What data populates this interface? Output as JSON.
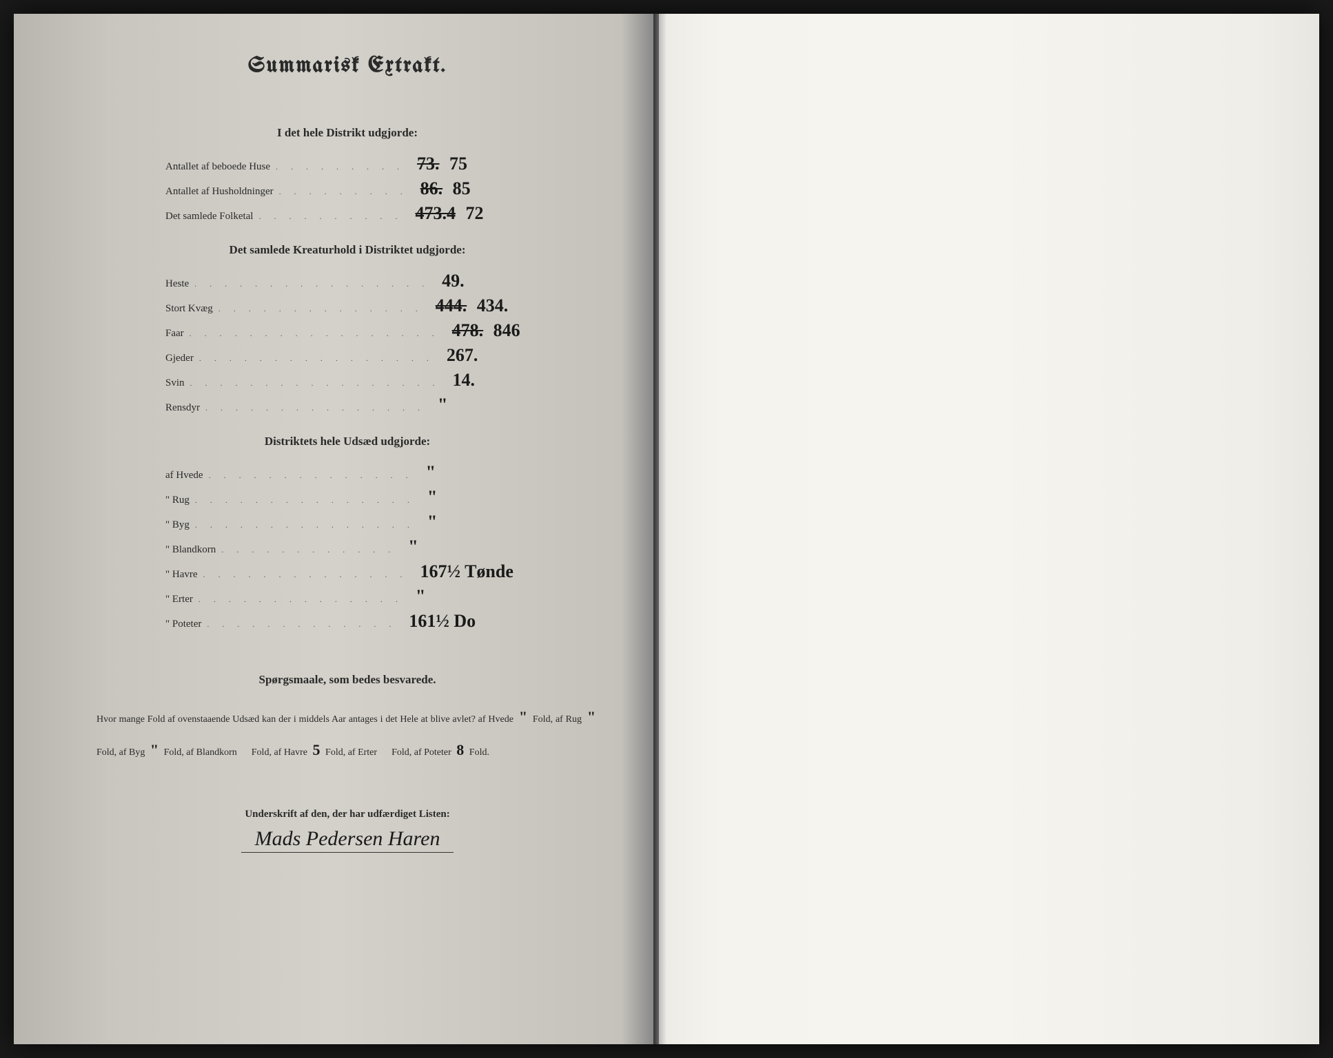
{
  "title": "Summarisk Extrakt.",
  "sections": {
    "district": {
      "header": "I det hele Distrikt udgjorde:",
      "rows": [
        {
          "label": "Antallet af beboede Huse",
          "dots": ". . . . . . . . .",
          "struck": "73.",
          "value": "75"
        },
        {
          "label": "Antallet af Husholdninger",
          "dots": ". . . . . . . . .",
          "struck": "86.",
          "value": "85"
        },
        {
          "label": "Det samlede Folketal",
          "dots": ". . . . . . . . . .",
          "struck": "473.4",
          "value": "72"
        }
      ]
    },
    "livestock": {
      "header": "Det samlede Kreaturhold i Distriktet udgjorde:",
      "rows": [
        {
          "label": "Heste",
          "dots": ". . . . . . . . . . . . . . . .",
          "value": "49."
        },
        {
          "label": "Stort Kvæg",
          "dots": ". . . . . . . . . . . . . .",
          "struck": "444.",
          "value": "434."
        },
        {
          "label": "Faar",
          "dots": ". . . . . . . . . . . . . . . . .",
          "struck": "478.",
          "value": "846"
        },
        {
          "label": "Gjeder",
          "dots": ". . . . . . . . . . . . . . . .",
          "value": "267."
        },
        {
          "label": "Svin",
          "dots": ". . . . . . . . . . . . . . . . .",
          "value": "14."
        },
        {
          "label": "Rensdyr",
          "dots": ". . . . . . . . . . . . . . .",
          "value": "\""
        }
      ]
    },
    "seed": {
      "header": "Distriktets hele Udsæd udgjorde:",
      "rows": [
        {
          "label": "af Hvede",
          "dots": ". . . . . . . . . . . . . .",
          "value": "\""
        },
        {
          "label": "\" Rug",
          "dots": ". . . . . . . . . . . . . . .",
          "value": "\""
        },
        {
          "label": "\" Byg",
          "dots": ". . . . . . . . . . . . . . .",
          "value": "\""
        },
        {
          "label": "\" Blandkorn",
          "dots": ". . . . . . . . . . . .",
          "value": "\""
        },
        {
          "label": "\" Havre",
          "dots": ". . . . . . . . . . . . . .",
          "value": "167½",
          "unit": "Tønde"
        },
        {
          "label": "\" Erter",
          "dots": ". . . . . . . . . . . . . .",
          "value": "\""
        },
        {
          "label": "\" Poteter",
          "dots": ". . . . . . . . . . . . .",
          "value": "161½",
          "unit": "Do"
        }
      ]
    }
  },
  "questions": {
    "header": "Spørgsmaale, som bedes besvarede.",
    "text_parts": {
      "p1": "Hvor mange Fold af ovenstaaende Udsæd kan der i middels Aar antages i det Hele at blive avlet? af Hvede",
      "p2": "Fold,",
      "p3": "af Rug",
      "p4": "Fold, af Byg",
      "p5": "Fold, af Blandkorn",
      "p6": "Fold, af Havre",
      "p7": "Fold, af Erter",
      "p8": "Fold,",
      "p9": "af Poteter",
      "p10": "Fold."
    },
    "answers": {
      "hvede": "\"",
      "rug": "\"",
      "byg": "\"",
      "havre": "5",
      "poteter": "8"
    }
  },
  "signature": {
    "label": "Underskrift af den, der har udfærdiget Listen:",
    "name": "Mads Pedersen Haren"
  },
  "colors": {
    "page_left_bg": "#c9c6bf",
    "page_right_bg": "#f5f3ed",
    "text": "#2a2a2a",
    "handwriting": "#1a1a1a"
  }
}
